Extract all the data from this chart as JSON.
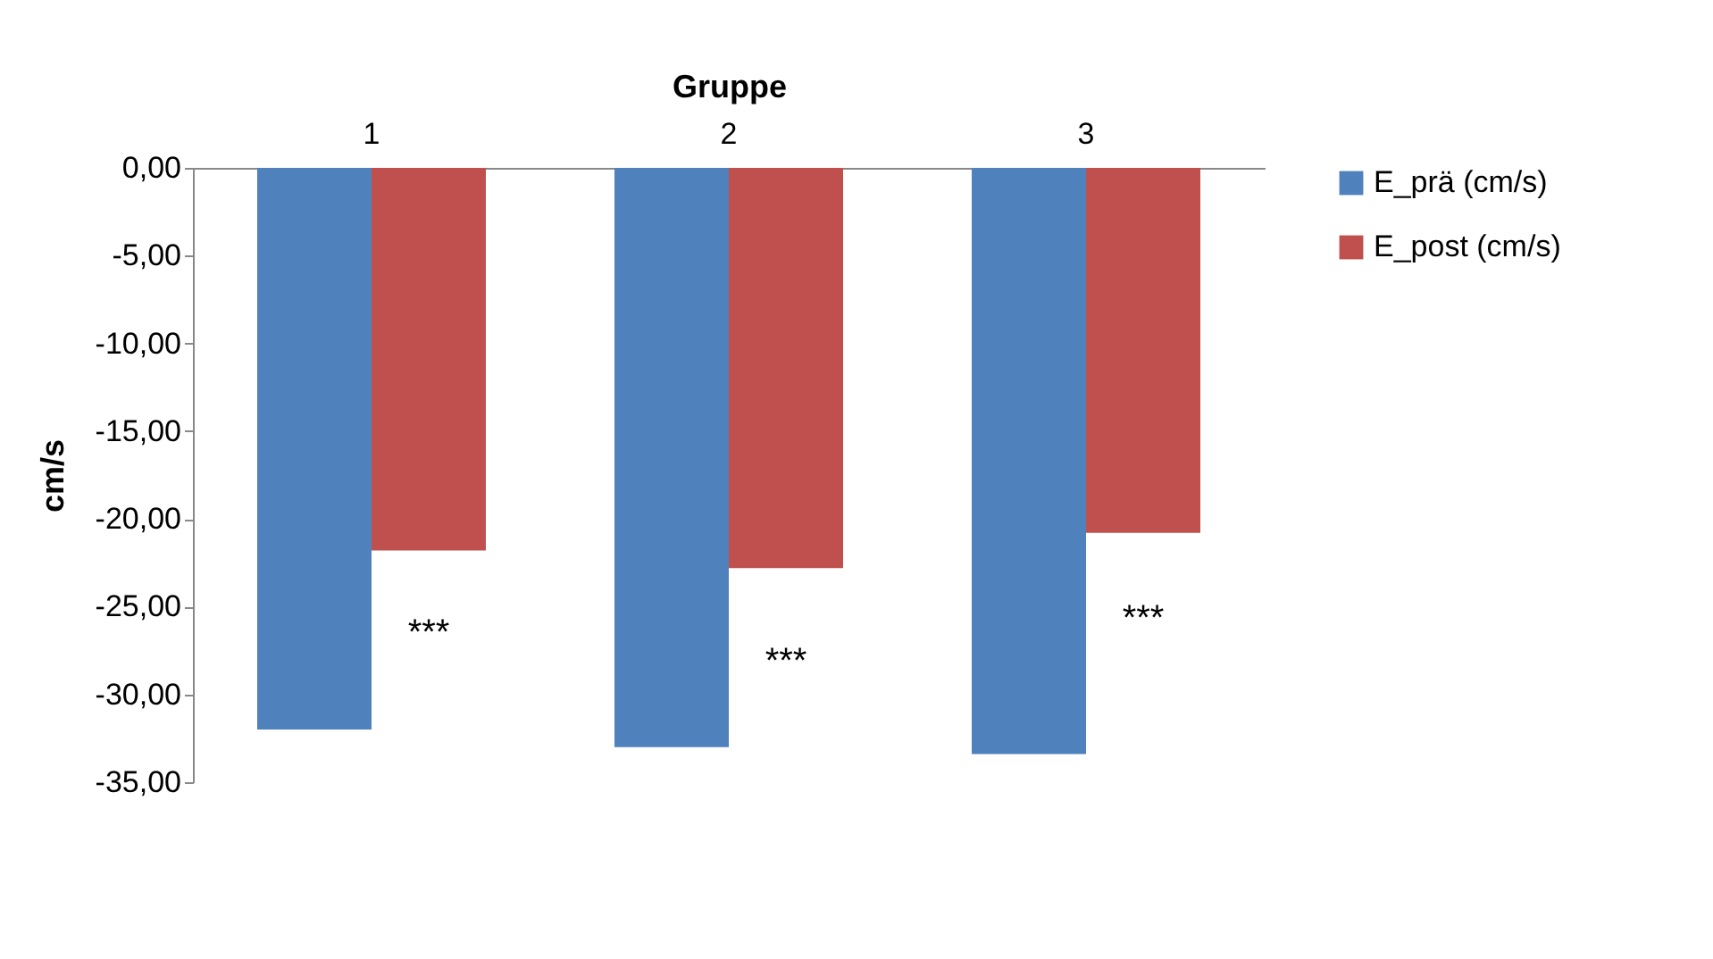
{
  "chart_data": {
    "type": "bar",
    "xlabel": "Gruppe",
    "ylabel": "cm/s",
    "categories": [
      "1",
      "2",
      "3"
    ],
    "series": [
      {
        "name": "E_prä (cm/s)",
        "color": "#4f81bd",
        "values": [
          -32.0,
          -33.0,
          -33.4
        ]
      },
      {
        "name": "E_post (cm/s)",
        "color": "#c0504d",
        "values": [
          -21.8,
          -22.8,
          -20.8
        ]
      }
    ],
    "ylim": [
      -35,
      0
    ],
    "yticks": [
      {
        "value": 0,
        "label": "0,00"
      },
      {
        "value": -5,
        "label": "-5,00"
      },
      {
        "value": -10,
        "label": "-10,00"
      },
      {
        "value": -15,
        "label": "-15,00"
      },
      {
        "value": -20,
        "label": "-20,00"
      },
      {
        "value": -25,
        "label": "-25,00"
      },
      {
        "value": -30,
        "label": "-30,00"
      },
      {
        "value": -35,
        "label": "-35,00"
      }
    ],
    "annotations": [
      {
        "text": "***",
        "x": "1",
        "y": -25.7
      },
      {
        "text": "***",
        "x": "2",
        "y": -27.3
      },
      {
        "text": "***",
        "x": "3",
        "y": -24.9
      }
    ],
    "legend": "right",
    "grid": false
  }
}
